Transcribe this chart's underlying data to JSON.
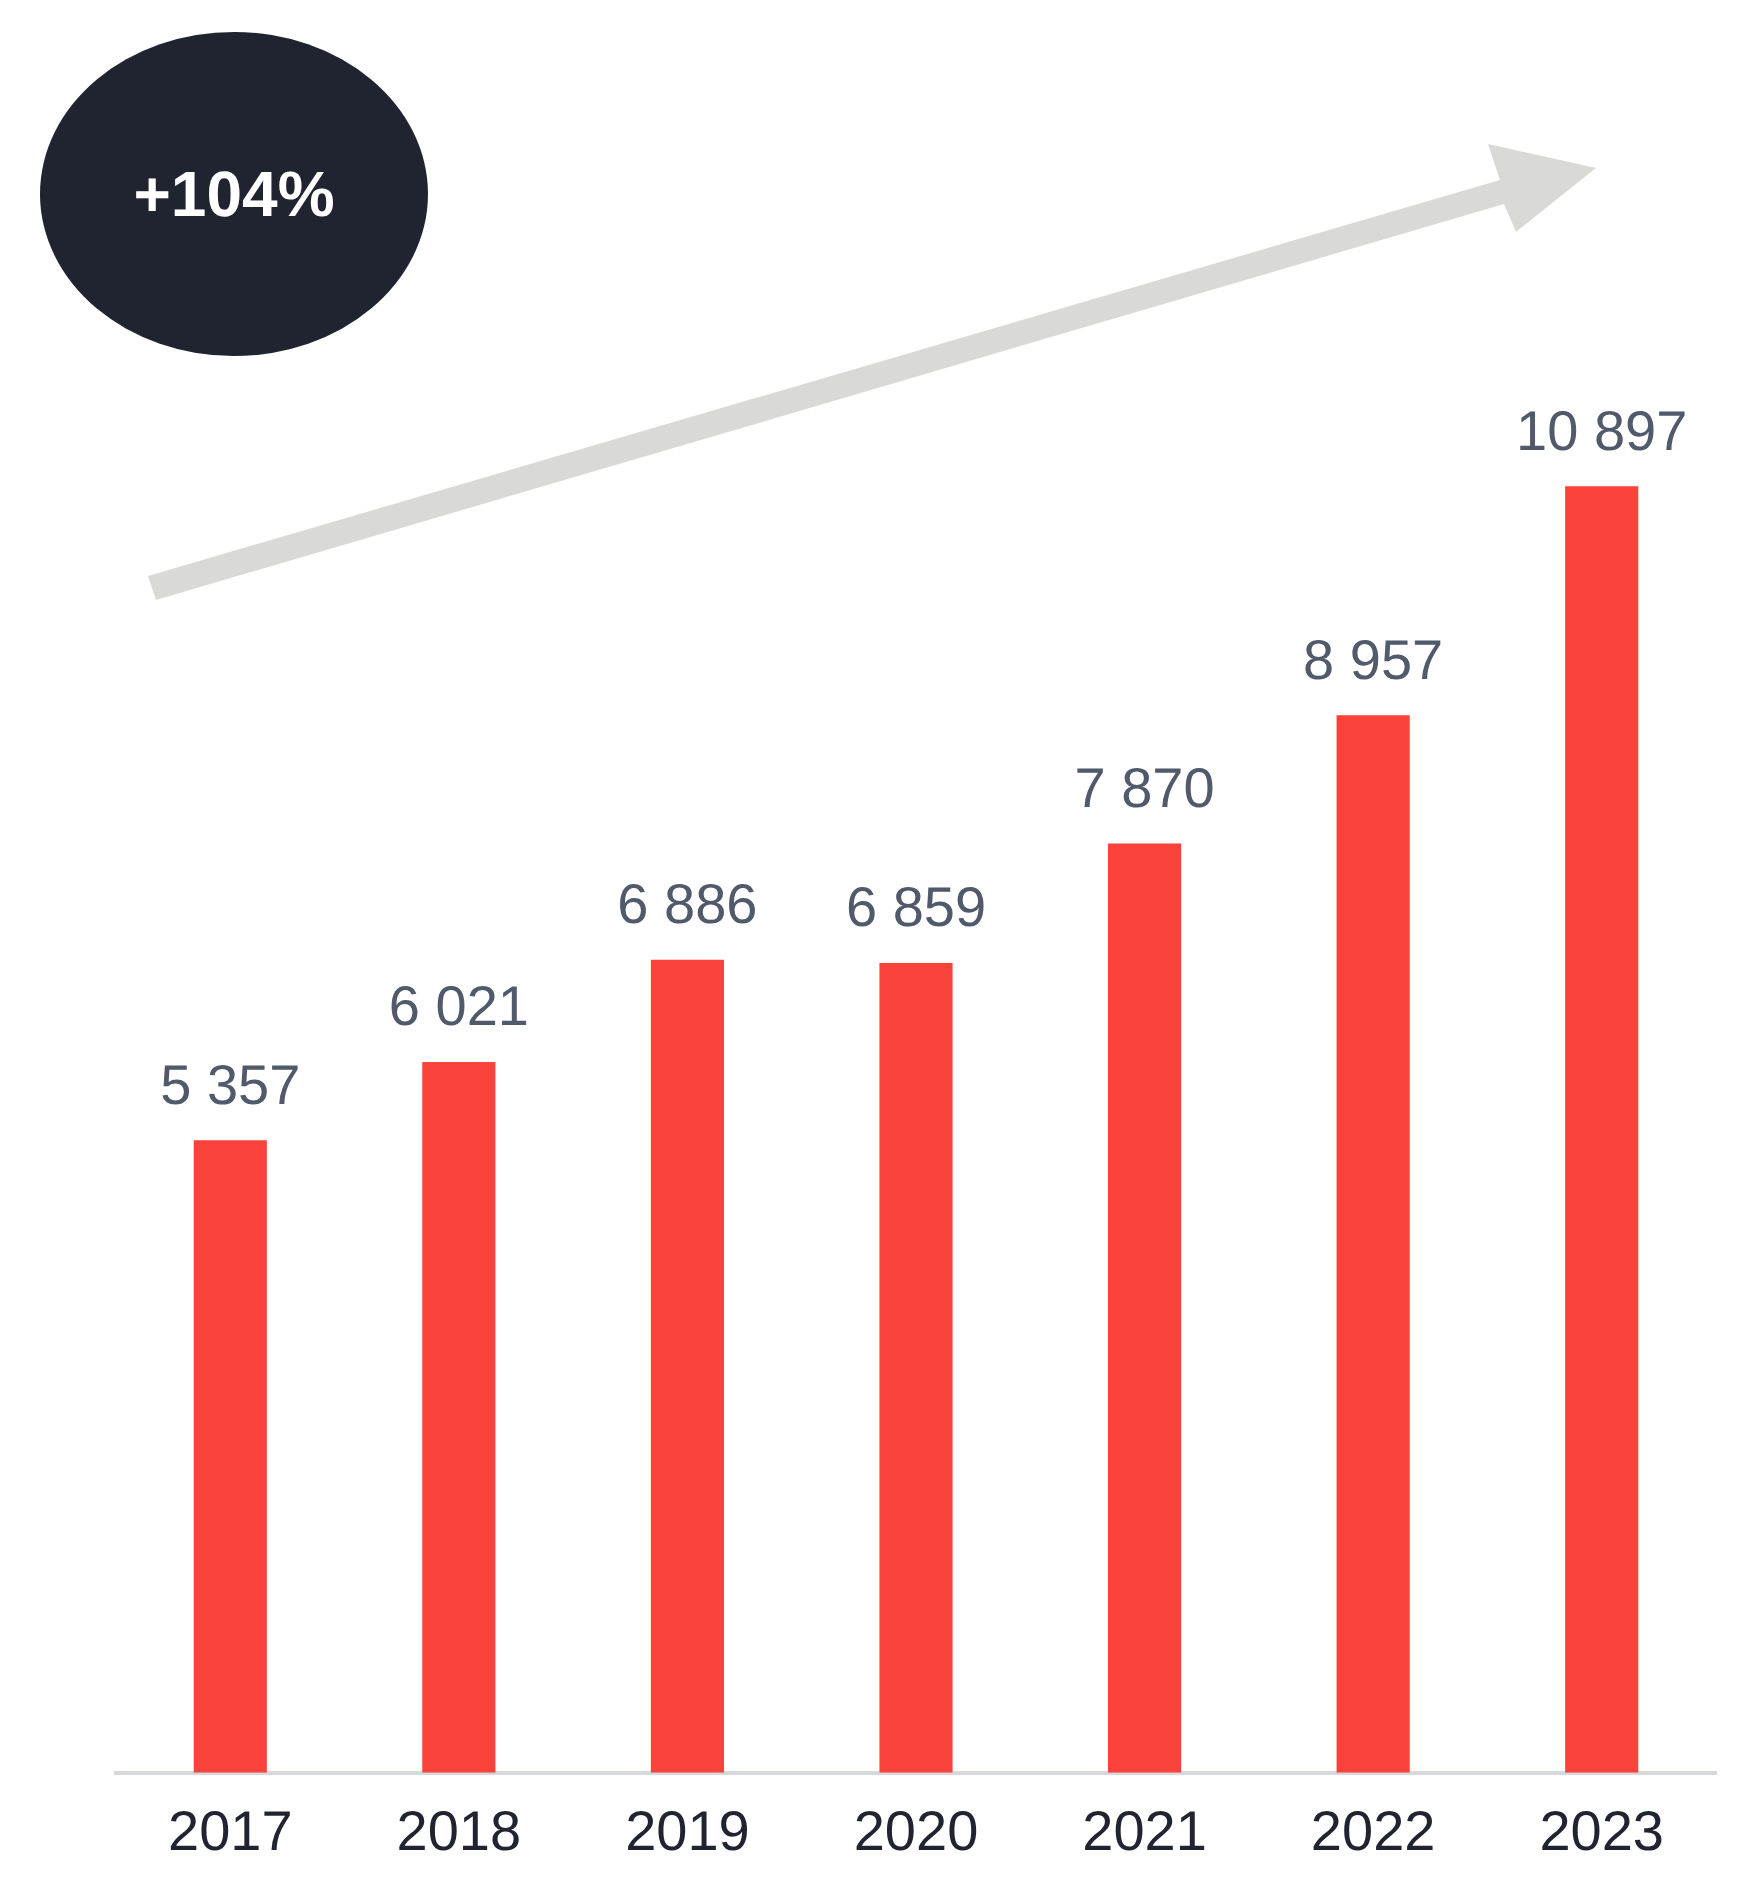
{
  "chart_data": {
    "type": "bar",
    "categories": [
      "2017",
      "2018",
      "2019",
      "2020",
      "2021",
      "2022",
      "2023"
    ],
    "values": [
      5357,
      6021,
      6886,
      6859,
      7870,
      8957,
      10897
    ],
    "value_labels": [
      "5 357",
      "6 021",
      "6 886",
      "6 859",
      "7 870",
      "8 957",
      "10 897"
    ],
    "color": "#f9423a",
    "annotations": [
      "+104%"
    ],
    "grid": false,
    "legend": false
  }
}
